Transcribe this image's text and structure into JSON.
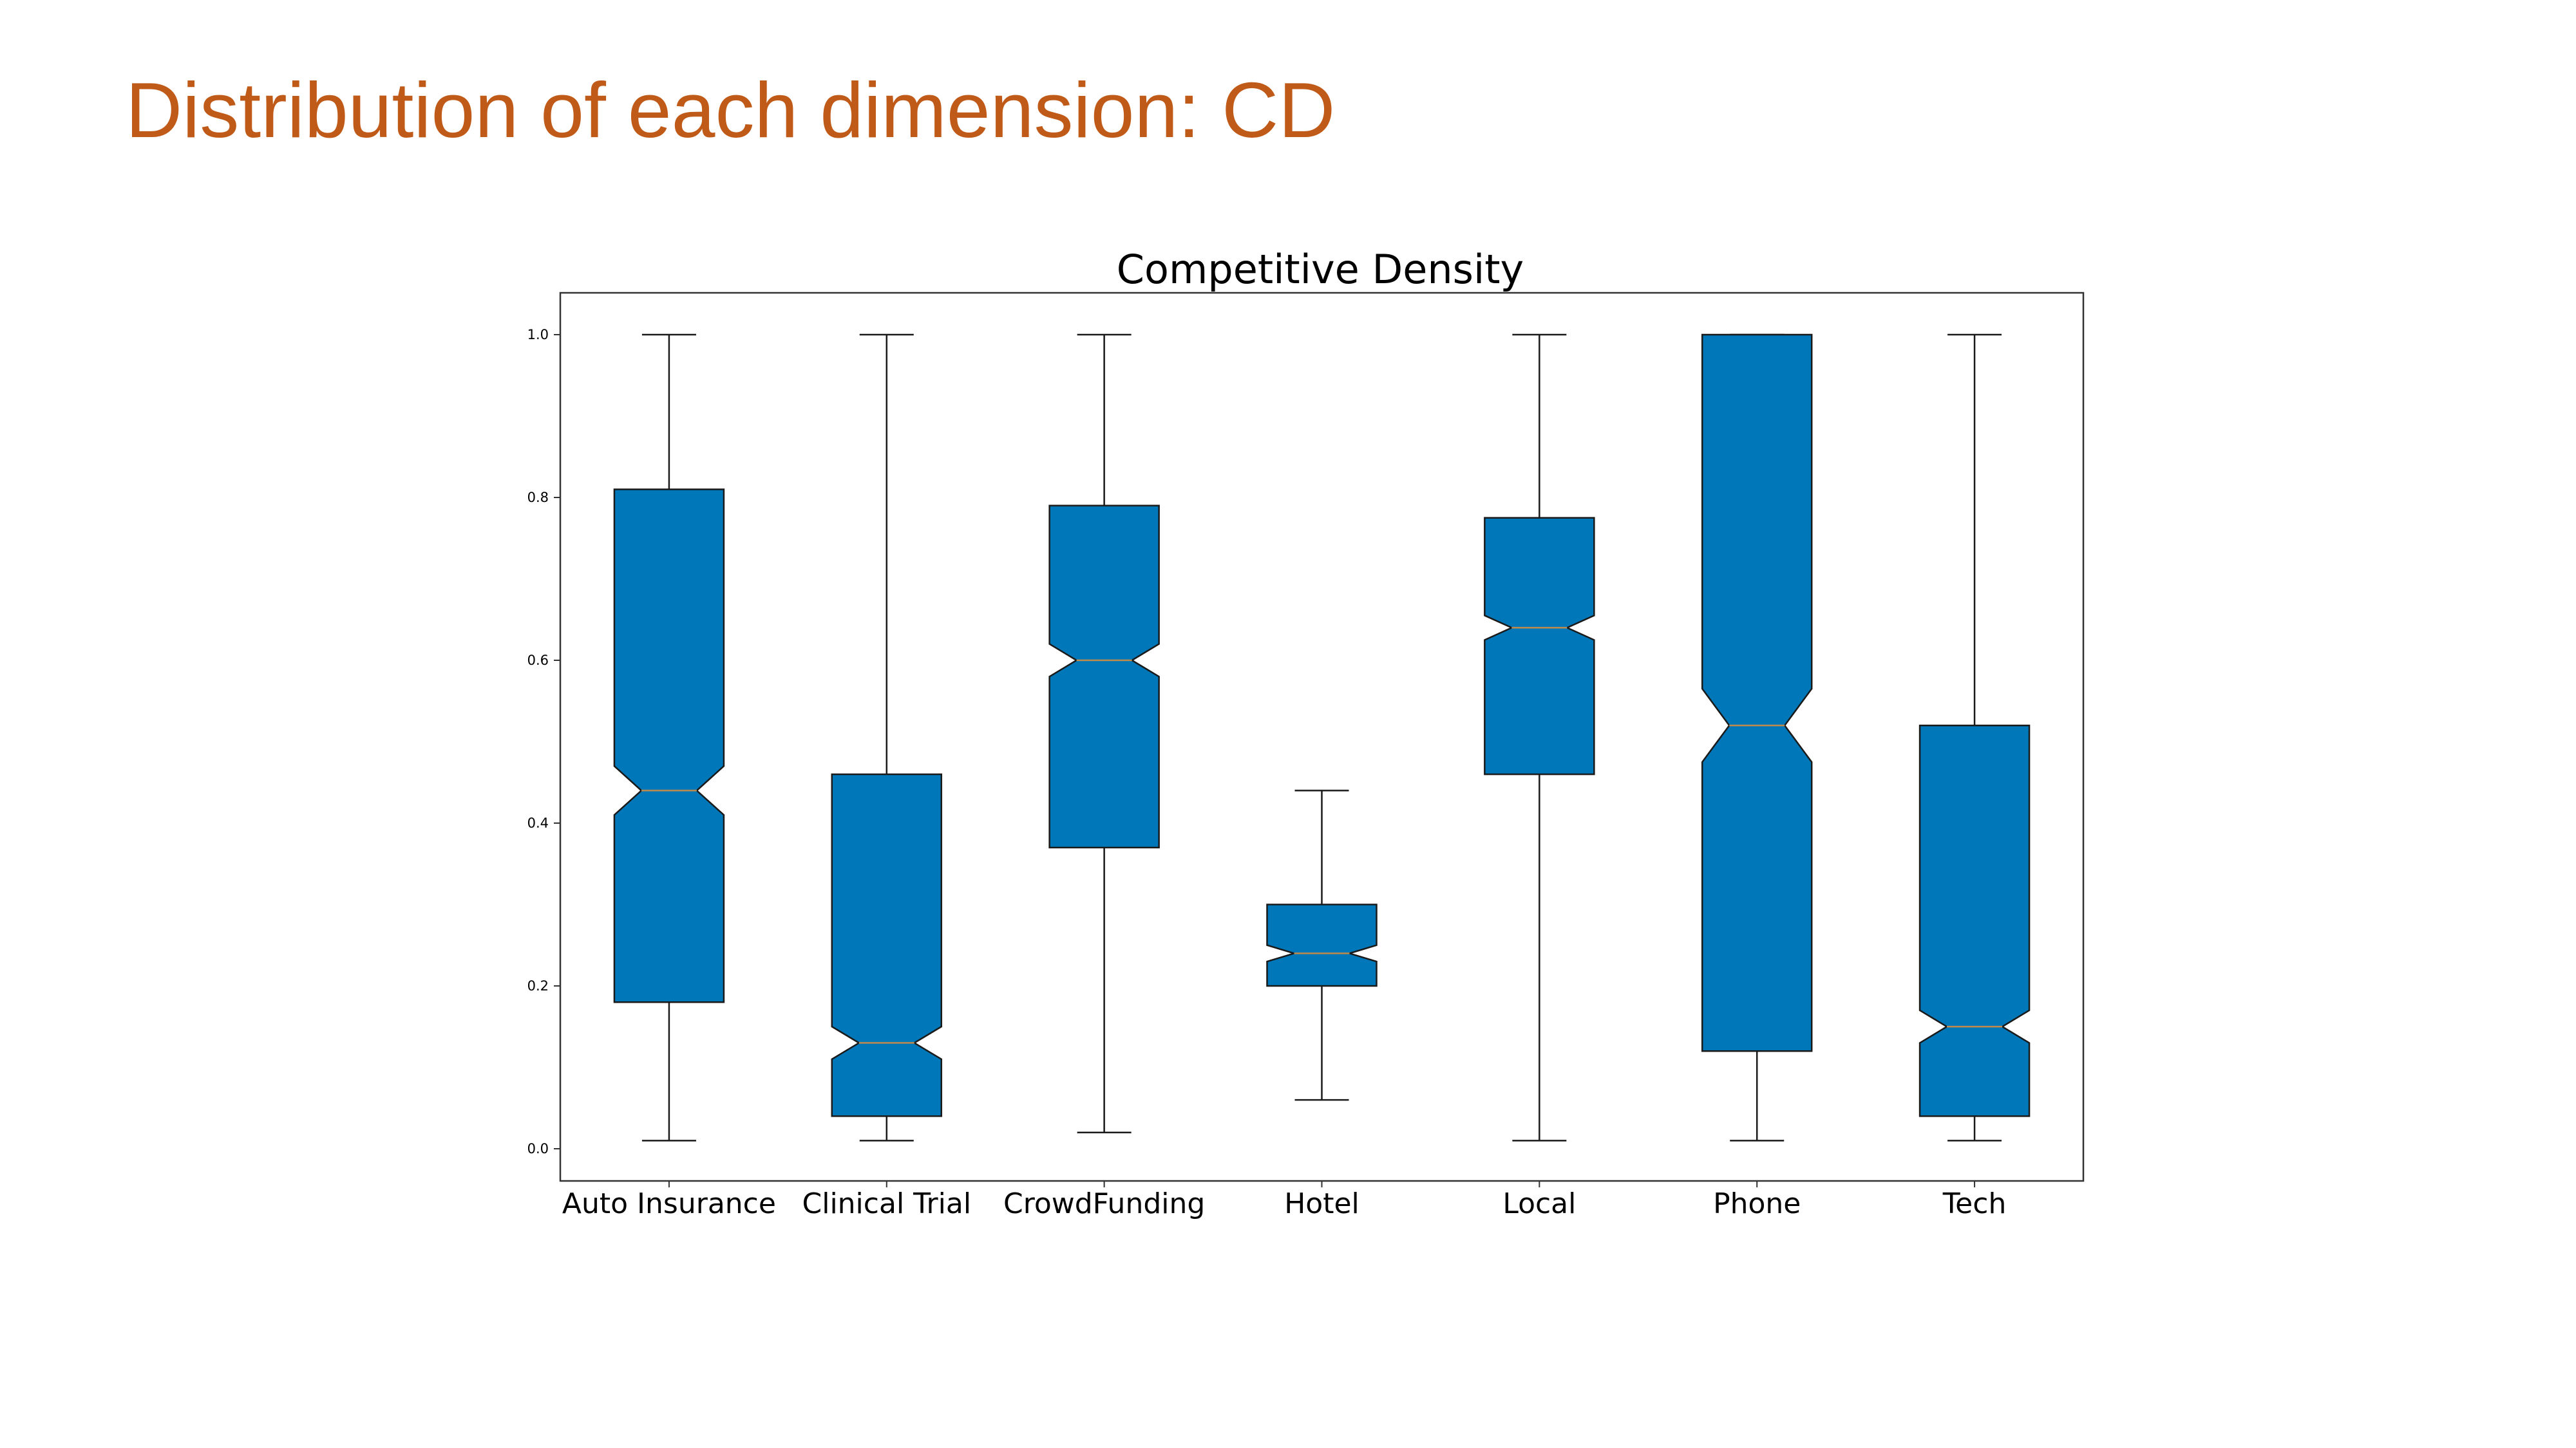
{
  "slide": {
    "title": "Distribution of each dimension: CD",
    "title_color": "#c05a18"
  },
  "chart_data": {
    "type": "boxplot",
    "notched": true,
    "title": "Competitive Density",
    "xlabel": "",
    "ylabel": "",
    "ylim": [
      -0.04,
      1.05
    ],
    "yticks": [
      0.0,
      0.2,
      0.4,
      0.6,
      0.8,
      1.0
    ],
    "ytick_labels": [
      "0.0",
      "0.2",
      "0.4",
      "0.6",
      "0.8",
      "1.0"
    ],
    "grid": false,
    "legend": "none",
    "box_color": "#0077b8",
    "edge_color": "#1a1a1a",
    "median_color": "#c08a4a",
    "categories": [
      "Auto Insurance",
      "Clinical Trial",
      "CrowdFunding",
      "Hotel",
      "Local",
      "Phone",
      "Tech"
    ],
    "boxes": [
      {
        "label": "Auto Insurance",
        "whisker_low": 0.01,
        "q1": 0.18,
        "notch_low": 0.41,
        "median": 0.44,
        "notch_high": 0.47,
        "q3": 0.81,
        "whisker_high": 1.0
      },
      {
        "label": "Clinical Trial",
        "whisker_low": 0.01,
        "q1": 0.04,
        "notch_low": 0.11,
        "median": 0.13,
        "notch_high": 0.15,
        "q3": 0.46,
        "whisker_high": 1.0
      },
      {
        "label": "CrowdFunding",
        "whisker_low": 0.02,
        "q1": 0.37,
        "notch_low": 0.58,
        "median": 0.6,
        "notch_high": 0.62,
        "q3": 0.79,
        "whisker_high": 1.0
      },
      {
        "label": "Hotel",
        "whisker_low": 0.06,
        "q1": 0.2,
        "notch_low": 0.23,
        "median": 0.24,
        "notch_high": 0.25,
        "q3": 0.3,
        "whisker_high": 0.44
      },
      {
        "label": "Local",
        "whisker_low": 0.01,
        "q1": 0.46,
        "notch_low": 0.625,
        "median": 0.64,
        "notch_high": 0.655,
        "q3": 0.775,
        "whisker_high": 1.0
      },
      {
        "label": "Phone",
        "whisker_low": 0.01,
        "q1": 0.12,
        "notch_low": 0.475,
        "median": 0.52,
        "notch_high": 0.565,
        "q3": 1.0,
        "whisker_high": 1.0
      },
      {
        "label": "Tech",
        "whisker_low": 0.01,
        "q1": 0.04,
        "notch_low": 0.13,
        "median": 0.15,
        "notch_high": 0.17,
        "q3": 0.52,
        "whisker_high": 1.0
      }
    ]
  }
}
